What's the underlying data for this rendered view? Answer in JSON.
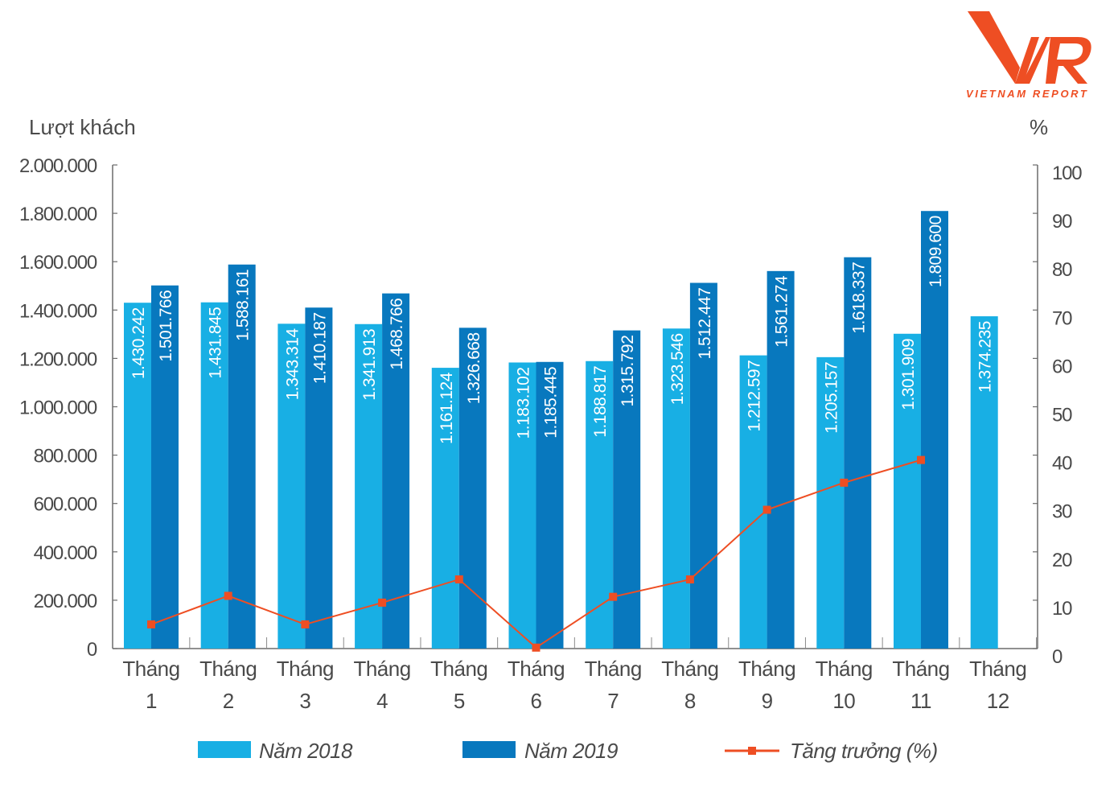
{
  "logo": {
    "mark": "VNR",
    "text": "VIETNAM REPORT",
    "color": "#ee4e23"
  },
  "chart_data": {
    "type": "bar",
    "title": "",
    "ylabel": "Lượt khách",
    "y2label": "%",
    "ylim": [
      0,
      2000000
    ],
    "y2lim": [
      0,
      100
    ],
    "yticks": [
      "0",
      "200.000",
      "400.000",
      "600.000",
      "800.000",
      "1.000.000",
      "1.200.000",
      "1.400.000",
      "1.600.000",
      "1.800.000",
      "2.000.000"
    ],
    "y2ticks": [
      "0",
      "10",
      "20",
      "30",
      "40",
      "50",
      "60",
      "70",
      "80",
      "90",
      "100"
    ],
    "categories": [
      {
        "line1": "Tháng",
        "line2": "1"
      },
      {
        "line1": "Tháng",
        "line2": "2"
      },
      {
        "line1": "Tháng",
        "line2": "3"
      },
      {
        "line1": "Tháng",
        "line2": "4"
      },
      {
        "line1": "Tháng",
        "line2": "5"
      },
      {
        "line1": "Tháng",
        "line2": "6"
      },
      {
        "line1": "Tháng",
        "line2": "7"
      },
      {
        "line1": "Tháng",
        "line2": "8"
      },
      {
        "line1": "Tháng",
        "line2": "9"
      },
      {
        "line1": "Tháng",
        "line2": "10"
      },
      {
        "line1": "Tháng",
        "line2": "11"
      },
      {
        "line1": "Tháng",
        "line2": "12"
      }
    ],
    "series": [
      {
        "name": "Năm 2018",
        "type": "bar",
        "color": "#18afe4",
        "values": [
          1430242,
          1431845,
          1343314,
          1341913,
          1161124,
          1183102,
          1188817,
          1323546,
          1212597,
          1205157,
          1301909,
          1374235
        ],
        "labels": [
          "1.430.242",
          "1.431.845",
          "1.343.314",
          "1.341.913",
          "1.161.124",
          "1.183.102",
          "1.188.817",
          "1.323.546",
          "1.212.597",
          "1.205.157",
          "1.301.909",
          "1.374.235"
        ]
      },
      {
        "name": "Năm 2019",
        "type": "bar",
        "color": "#0878be",
        "values": [
          1501766,
          1588161,
          1410187,
          1468766,
          1326668,
          1185445,
          1315792,
          1512447,
          1561274,
          1618337,
          1809600,
          null
        ],
        "labels": [
          "1.501.766",
          "1.588.161",
          "1.410.187",
          "1.468.766",
          "1.326.668",
          "1.185.445",
          "1.315.792",
          "1.512.447",
          "1.561.274",
          "1.618.337",
          "1.809.600",
          null
        ]
      },
      {
        "name": "Tăng trưởng (%)",
        "type": "line",
        "axis": "right",
        "color": "#ee4e23",
        "values": [
          5.0,
          10.9,
          5.0,
          9.5,
          14.3,
          0.2,
          10.7,
          14.3,
          28.7,
          34.3,
          39.0,
          null
        ]
      }
    ],
    "legend": {
      "position": "bottom",
      "items": [
        "Năm 2018",
        "Năm 2019",
        "Tăng trưởng (%)"
      ]
    },
    "grid": false
  }
}
